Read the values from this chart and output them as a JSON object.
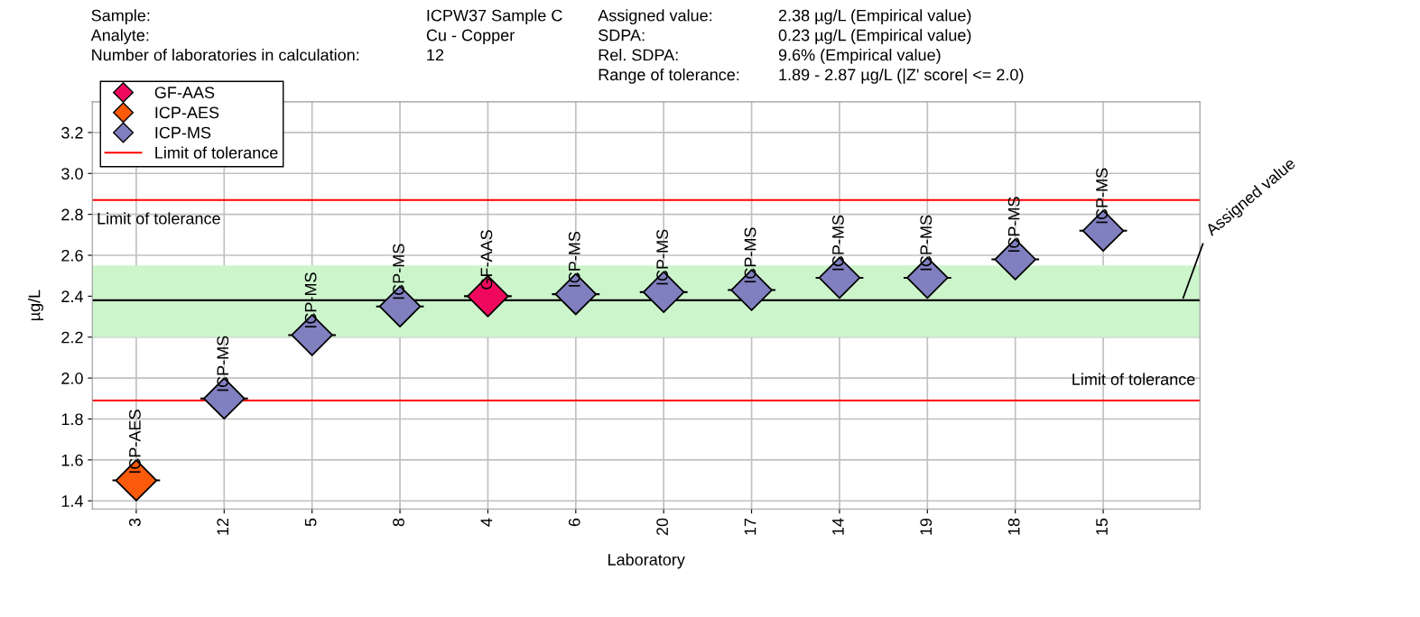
{
  "chart_data": {
    "type": "scatter",
    "xlabel": "Laboratory",
    "ylabel": "µg/L",
    "categories": [
      "3",
      "12",
      "5",
      "8",
      "4",
      "6",
      "20",
      "17",
      "14",
      "19",
      "18",
      "15"
    ],
    "series": [
      {
        "name": "GF-AAS",
        "color": "#f0085f",
        "x": [
          "4"
        ],
        "values": [
          2.4
        ],
        "value_labels": [
          "GF-AAS"
        ]
      },
      {
        "name": "ICP-AES",
        "color": "#fa5a0a",
        "x": [
          "3"
        ],
        "values": [
          1.5
        ],
        "value_labels": [
          "ICP-AES"
        ]
      },
      {
        "name": "ICP-MS",
        "color": "#8080c0",
        "x": [
          "12",
          "5",
          "8",
          "6",
          "20",
          "17",
          "14",
          "19",
          "18",
          "15"
        ],
        "values": [
          1.9,
          2.21,
          2.35,
          2.41,
          2.42,
          2.43,
          2.49,
          2.49,
          2.58,
          2.72
        ],
        "value_labels": [
          "ICP-MS",
          "ICP-MS",
          "ICP-MS",
          "ICP-MS",
          "ICP-MS",
          "ICP-MS",
          "ICP-MS",
          "ICP-MS",
          "ICP-MS",
          "ICP-MS"
        ]
      }
    ],
    "ylim": [
      1.36,
      3.35
    ],
    "yticks": [
      1.4,
      1.6,
      1.8,
      {
        "value": 2.0,
        "label": "2.0"
      },
      2.2,
      2.4,
      2.6,
      2.8,
      {
        "value": 3.0,
        "label": "3.0"
      },
      3.2
    ],
    "ref_lines": [
      {
        "axis": "y",
        "value": 2.87,
        "label": "Limit of tolerance",
        "color": "#ff0000"
      },
      {
        "axis": "y",
        "value": 1.89,
        "label": "Limit of tolerance",
        "color": "#ff0000"
      },
      {
        "axis": "y",
        "value": 2.38,
        "label": "Assigned value",
        "color": "#000000"
      }
    ],
    "bands": [
      {
        "axis": "y",
        "from": 2.2,
        "to": 2.55,
        "color": "#ccf5cc"
      }
    ],
    "annotations": [
      "Sample:",
      "Analyte:",
      "Number of laboratories in calculation:",
      "ICPW37 Sample C",
      "Cu - Copper",
      "12",
      "Assigned value:",
      "SDPA:",
      "Rel. SDPA:",
      "Range of tolerance:",
      "2.38 µg/L (Empirical value)",
      "0.23 µg/L (Empirical value)",
      "9.6% (Empirical value)",
      "1.89 - 2.87 µg/L (|Z' score| <= 2.0)"
    ],
    "marker": "diamond",
    "grid": true,
    "legend": "top left"
  }
}
